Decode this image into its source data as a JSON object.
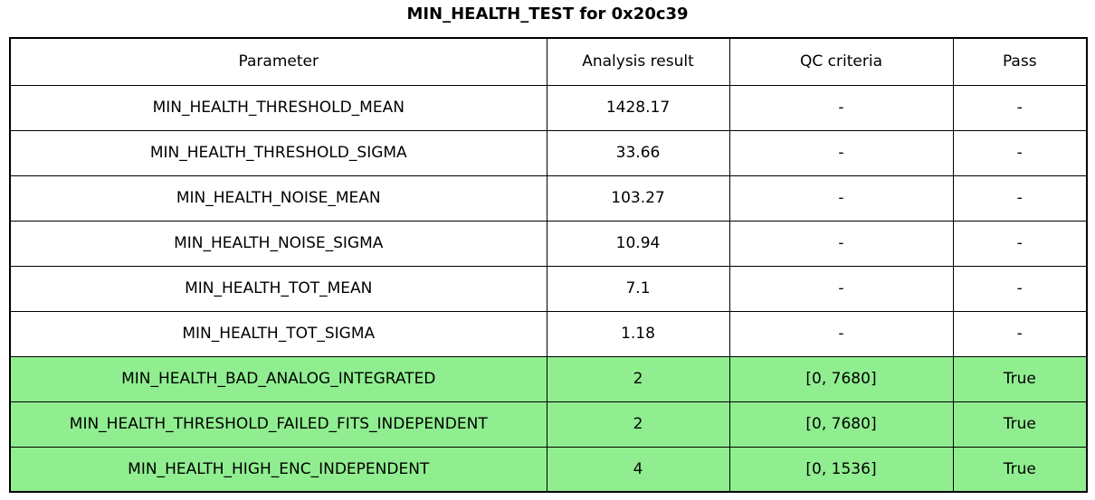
{
  "title": "MIN_HEALTH_TEST for 0x20c39",
  "colors": {
    "highlight_green": "#90EE90",
    "border": "#000000",
    "background": "#FFFFFF",
    "text": "#000000"
  },
  "chart_data": {
    "type": "table",
    "title": "MIN_HEALTH_TEST for 0x20c39",
    "columns": [
      "Parameter",
      "Analysis result",
      "QC criteria",
      "Pass"
    ],
    "rows": [
      [
        "MIN_HEALTH_THRESHOLD_MEAN",
        "1428.17",
        "-",
        "-"
      ],
      [
        "MIN_HEALTH_THRESHOLD_SIGMA",
        "33.66",
        "-",
        "-"
      ],
      [
        "MIN_HEALTH_NOISE_MEAN",
        "103.27",
        "-",
        "-"
      ],
      [
        "MIN_HEALTH_NOISE_SIGMA",
        "10.94",
        "-",
        "-"
      ],
      [
        "MIN_HEALTH_TOT_MEAN",
        "7.1",
        "-",
        "-"
      ],
      [
        "MIN_HEALTH_TOT_SIGMA",
        "1.18",
        "-",
        "-"
      ],
      [
        "MIN_HEALTH_BAD_ANALOG_INTEGRATED",
        "2",
        "[0, 7680]",
        "True"
      ],
      [
        "MIN_HEALTH_THRESHOLD_FAILED_FITS_INDEPENDENT",
        "2",
        "[0, 7680]",
        "True"
      ],
      [
        "MIN_HEALTH_HIGH_ENC_INDEPENDENT",
        "4",
        "[0, 1536]",
        "True"
      ]
    ],
    "highlighted_rows": [
      6,
      7,
      8
    ],
    "highlight_color": "#90EE90",
    "legend_position": "none",
    "grid": "full-borders"
  }
}
